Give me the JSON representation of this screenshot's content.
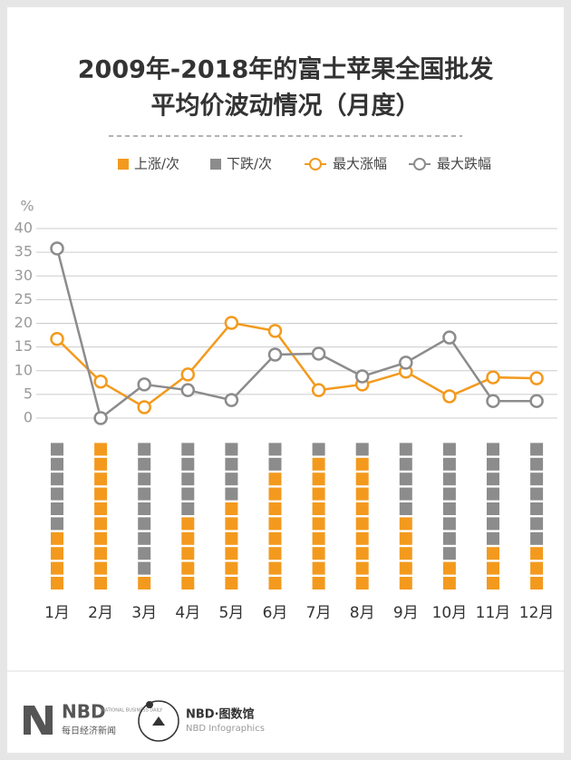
{
  "chart_data": {
    "type": "combo",
    "title": [
      "2009年-2018年的富士苹果全国批发",
      "平均价波动情况（月度）"
    ],
    "y_label": "%",
    "categories": [
      "1月",
      "2月",
      "3月",
      "4月",
      "5月",
      "6月",
      "7月",
      "8月",
      "9月",
      "10月",
      "11月",
      "12月"
    ],
    "series": [
      {
        "name": "上涨/次",
        "type": "bar",
        "color": "#f39a1e",
        "values": [
          4,
          10,
          1,
          5,
          6,
          8,
          9,
          9,
          5,
          2,
          3,
          3
        ]
      },
      {
        "name": "下跌/次",
        "type": "bar",
        "color": "#8c8c8c",
        "values": [
          6,
          0,
          9,
          5,
          4,
          2,
          1,
          1,
          5,
          8,
          7,
          7
        ]
      },
      {
        "name": "最大涨幅",
        "type": "line",
        "color": "#f39a1e",
        "values": [
          16.7,
          7.7,
          2.3,
          9.2,
          20.1,
          18.4,
          5.9,
          7.1,
          9.8,
          4.6,
          8.6,
          8.4
        ]
      },
      {
        "name": "最大跌幅",
        "type": "line",
        "color": "#8c8c8c",
        "values": [
          35.8,
          0,
          7.1,
          5.9,
          3.8,
          13.4,
          13.6,
          8.8,
          11.7,
          17.0,
          3.6,
          3.6
        ]
      }
    ],
    "ylim": [
      0,
      40
    ],
    "yticks": [
      0,
      5,
      10,
      15,
      20,
      25,
      30,
      35,
      40
    ],
    "grid": true
  },
  "footer": {
    "logo": "NBD",
    "logo_en": "NATIONAL BUSINESS DAILY",
    "logo_cn": "每日经济新闻",
    "brand": "NBD·图数馆",
    "brand_en": "NBD Infographics"
  }
}
